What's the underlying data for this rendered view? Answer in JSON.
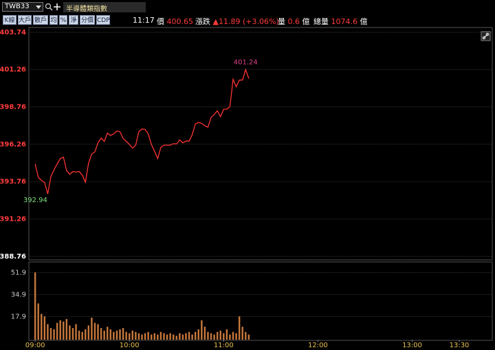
{
  "toolbar": {
    "symbol": "TWB33",
    "name": "半導體類指數",
    "buttons": [
      "K線",
      "大戶",
      "散戶",
      "均",
      "%",
      "淨",
      "分價",
      "CDP"
    ],
    "quote": {
      "time": "11:17",
      "price_label": "價",
      "price": "400.65",
      "change_label": "漲跌",
      "change": "▲11.89 (+3.06%)",
      "volume_label": "量",
      "volume": "0.6",
      "volume_unit": "億",
      "total_label": "總量",
      "total": "1074.6",
      "total_unit": "億"
    }
  },
  "chart_data": {
    "type": "line",
    "x": [
      "09:00",
      "09:02",
      "09:04",
      "09:06",
      "09:08",
      "09:10",
      "09:12",
      "09:14",
      "09:16",
      "09:18",
      "09:20",
      "09:22",
      "09:24",
      "09:26",
      "09:28",
      "09:30",
      "09:32",
      "09:34",
      "09:36",
      "09:38",
      "09:40",
      "09:42",
      "09:44",
      "09:46",
      "09:48",
      "09:50",
      "09:52",
      "09:54",
      "09:56",
      "09:58",
      "10:00",
      "10:02",
      "10:04",
      "10:06",
      "10:08",
      "10:10",
      "10:12",
      "10:14",
      "10:16",
      "10:18",
      "10:20",
      "10:22",
      "10:24",
      "10:26",
      "10:28",
      "10:30",
      "10:32",
      "10:34",
      "10:36",
      "10:38",
      "10:40",
      "10:42",
      "10:44",
      "10:46",
      "10:48",
      "10:50",
      "10:52",
      "10:54",
      "10:56",
      "10:58",
      "11:00",
      "11:02",
      "11:04",
      "11:06",
      "11:08",
      "11:10",
      "11:12",
      "11:14",
      "11:16"
    ],
    "series": [
      {
        "color": "#ff3333",
        "values": [
          394.95,
          394.05,
          393.85,
          393.7,
          392.94,
          394.1,
          394.55,
          394.95,
          395.3,
          395.4,
          394.5,
          394.26,
          394.43,
          394.4,
          394.44,
          394.2,
          393.72,
          395.0,
          395.6,
          395.75,
          396.35,
          396.68,
          396.45,
          397.0,
          396.85,
          396.95,
          397.15,
          397.1,
          396.65,
          396.45,
          396.25,
          396.0,
          396.2,
          397.1,
          397.28,
          397.25,
          396.95,
          396.25,
          395.8,
          395.3,
          396.05,
          396.2,
          396.2,
          396.2,
          396.3,
          396.28,
          396.55,
          396.35,
          396.47,
          396.47,
          396.9,
          397.62,
          397.72,
          397.65,
          397.5,
          397.4,
          398.05,
          398.25,
          398.5,
          398.1,
          398.6,
          398.6,
          398.77,
          400.6,
          400.1,
          400.55,
          400.55,
          401.24,
          400.65
        ]
      },
      {
        "type": "bar",
        "axis": "y2",
        "color": "#c8783c",
        "values": [
          52,
          28,
          20,
          18,
          12,
          9,
          8,
          13,
          15,
          14,
          16,
          11,
          9,
          12,
          7,
          6,
          8,
          11,
          17,
          13,
          12,
          9,
          7,
          10,
          8,
          6,
          7,
          8,
          9,
          6,
          5,
          7,
          6,
          5,
          4,
          5,
          6,
          4,
          5,
          4,
          6,
          5,
          4,
          5,
          4,
          3,
          5,
          4,
          5,
          6,
          4,
          6,
          8,
          15,
          10,
          6,
          5,
          4,
          6,
          7,
          5,
          8,
          4,
          6,
          5,
          18,
          10,
          6,
          4
        ]
      }
    ],
    "xlim": [
      "08:56",
      "13:51"
    ],
    "xticks": [
      "09:00",
      "10:00",
      "11:00",
      "12:00",
      "13:00",
      "13:30"
    ],
    "ylim": [
      388.76,
      403.74
    ],
    "yticks": [
      403.74,
      401.26,
      398.76,
      396.26,
      393.76,
      391.26,
      388.76
    ],
    "y2lim": [
      0,
      59
    ],
    "y2ticks": [
      51.9,
      34.9,
      17.9
    ],
    "grid": true
  }
}
